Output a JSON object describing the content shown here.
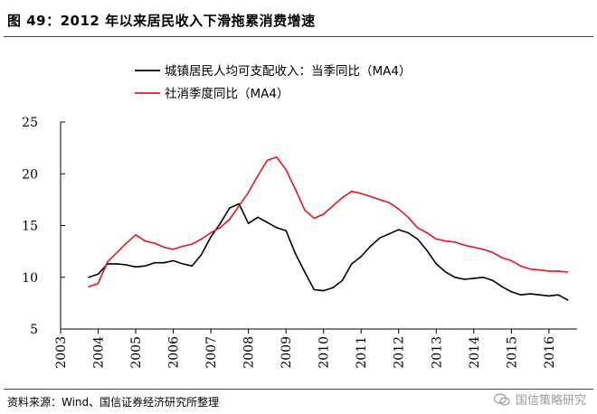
{
  "header": {
    "title": "图 49：2012 年以来居民收入下滑拖累消费增速"
  },
  "footer": {
    "source": "资料来源：Wind、国信证券经济研究所整理",
    "watermark": "国信策略研究"
  },
  "colors": {
    "series_black": "#000000",
    "series_red": "#e8141b",
    "watermark": "#9a9a9a"
  },
  "chart_data": {
    "type": "line",
    "xlim": [
      2003,
      2016.75
    ],
    "ylim": [
      5,
      25
    ],
    "x_ticks": [
      2003,
      2004,
      2005,
      2006,
      2007,
      2008,
      2009,
      2010,
      2011,
      2012,
      2013,
      2014,
      2015,
      2016
    ],
    "y_ticks": [
      5,
      10,
      15,
      20,
      25
    ],
    "grid": false,
    "legend_position": "top-center",
    "series": [
      {
        "name": "城镇居民人均可支配收入：当季同比（MA4）",
        "color": "#000000",
        "points": [
          [
            2003.75,
            10.0
          ],
          [
            2004.0,
            10.3
          ],
          [
            2004.25,
            11.3
          ],
          [
            2004.5,
            11.3
          ],
          [
            2004.75,
            11.2
          ],
          [
            2005.0,
            11.0
          ],
          [
            2005.25,
            11.1
          ],
          [
            2005.5,
            11.4
          ],
          [
            2005.75,
            11.4
          ],
          [
            2006.0,
            11.6
          ],
          [
            2006.25,
            11.3
          ],
          [
            2006.5,
            11.1
          ],
          [
            2006.75,
            12.2
          ],
          [
            2007.0,
            13.9
          ],
          [
            2007.25,
            15.2
          ],
          [
            2007.5,
            16.7
          ],
          [
            2007.75,
            17.1
          ],
          [
            2008.0,
            15.2
          ],
          [
            2008.25,
            15.8
          ],
          [
            2008.5,
            15.3
          ],
          [
            2008.75,
            14.8
          ],
          [
            2009.0,
            14.5
          ],
          [
            2009.25,
            12.3
          ],
          [
            2009.5,
            10.5
          ],
          [
            2009.75,
            8.8
          ],
          [
            2010.0,
            8.7
          ],
          [
            2010.25,
            9.0
          ],
          [
            2010.5,
            9.7
          ],
          [
            2010.75,
            11.3
          ],
          [
            2011.0,
            12.0
          ],
          [
            2011.25,
            13.0
          ],
          [
            2011.5,
            13.8
          ],
          [
            2011.75,
            14.2
          ],
          [
            2012.0,
            14.6
          ],
          [
            2012.25,
            14.3
          ],
          [
            2012.5,
            13.7
          ],
          [
            2012.75,
            12.6
          ],
          [
            2013.0,
            11.3
          ],
          [
            2013.25,
            10.5
          ],
          [
            2013.5,
            10.0
          ],
          [
            2013.75,
            9.8
          ],
          [
            2014.0,
            9.9
          ],
          [
            2014.25,
            10.0
          ],
          [
            2014.5,
            9.7
          ],
          [
            2014.75,
            9.1
          ],
          [
            2015.0,
            8.6
          ],
          [
            2015.25,
            8.3
          ],
          [
            2015.5,
            8.4
          ],
          [
            2015.75,
            8.3
          ],
          [
            2016.0,
            8.2
          ],
          [
            2016.25,
            8.3
          ],
          [
            2016.5,
            7.8
          ]
        ]
      },
      {
        "name": "社消季度同比（MA4）",
        "color": "#e8141b",
        "points": [
          [
            2003.75,
            9.1
          ],
          [
            2004.0,
            9.4
          ],
          [
            2004.25,
            11.5
          ],
          [
            2004.5,
            12.4
          ],
          [
            2004.75,
            13.3
          ],
          [
            2005.0,
            14.1
          ],
          [
            2005.25,
            13.5
          ],
          [
            2005.5,
            13.3
          ],
          [
            2005.75,
            12.9
          ],
          [
            2006.0,
            12.7
          ],
          [
            2006.25,
            13.0
          ],
          [
            2006.5,
            13.2
          ],
          [
            2006.75,
            13.7
          ],
          [
            2007.0,
            14.3
          ],
          [
            2007.25,
            14.8
          ],
          [
            2007.5,
            15.6
          ],
          [
            2007.75,
            16.9
          ],
          [
            2008.0,
            18.2
          ],
          [
            2008.25,
            19.8
          ],
          [
            2008.5,
            21.3
          ],
          [
            2008.75,
            21.6
          ],
          [
            2009.0,
            20.4
          ],
          [
            2009.25,
            18.5
          ],
          [
            2009.5,
            16.5
          ],
          [
            2009.75,
            15.7
          ],
          [
            2010.0,
            16.1
          ],
          [
            2010.25,
            16.9
          ],
          [
            2010.5,
            17.7
          ],
          [
            2010.75,
            18.3
          ],
          [
            2011.0,
            18.1
          ],
          [
            2011.25,
            17.8
          ],
          [
            2011.5,
            17.5
          ],
          [
            2011.75,
            17.2
          ],
          [
            2012.0,
            16.6
          ],
          [
            2012.25,
            15.8
          ],
          [
            2012.5,
            14.8
          ],
          [
            2012.75,
            14.3
          ],
          [
            2013.0,
            13.7
          ],
          [
            2013.25,
            13.5
          ],
          [
            2013.5,
            13.4
          ],
          [
            2013.75,
            13.1
          ],
          [
            2014.0,
            12.9
          ],
          [
            2014.25,
            12.7
          ],
          [
            2014.5,
            12.4
          ],
          [
            2014.75,
            11.9
          ],
          [
            2015.0,
            11.6
          ],
          [
            2015.25,
            11.1
          ],
          [
            2015.5,
            10.8
          ],
          [
            2015.75,
            10.7
          ],
          [
            2016.0,
            10.6
          ],
          [
            2016.25,
            10.6
          ],
          [
            2016.5,
            10.5
          ]
        ]
      }
    ]
  }
}
